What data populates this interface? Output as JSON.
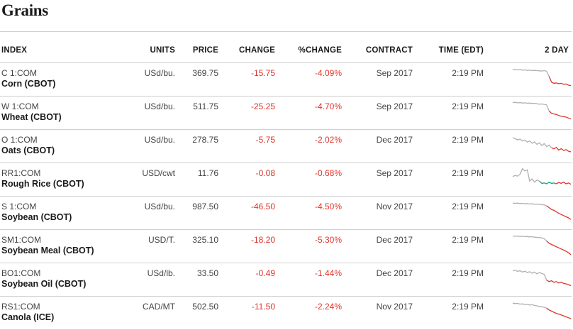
{
  "page": {
    "title": "Grains"
  },
  "columns": {
    "index": "INDEX",
    "units": "UNITS",
    "price": "PRICE",
    "change": "CHANGE",
    "pct_change": "%CHANGE",
    "contract": "CONTRACT",
    "time": "TIME (EDT)",
    "two_day": "2 DAY"
  },
  "colors": {
    "negative": "#e0352b",
    "positive": "#1aa37a",
    "neutral_line": "#b0b0b0"
  },
  "rows": [
    {
      "code": "C 1:COM",
      "name": "Corn (CBOT)",
      "units": "USd/bu.",
      "price": "369.75",
      "change": "-15.75",
      "pct": "-4.09%",
      "contract": "Sep 2017",
      "time": "2:19 PM",
      "trend": [
        0.9,
        0.91,
        0.89,
        0.9,
        0.88,
        0.89,
        0.87,
        0.88,
        0.86,
        0.87,
        0.86,
        0.85,
        0.84,
        0.86,
        0.83,
        0.6,
        0.35,
        0.3,
        0.32,
        0.28,
        0.3,
        0.26,
        0.27,
        0.22,
        0.2
      ],
      "split": 15
    },
    {
      "code": "W 1:COM",
      "name": "Wheat (CBOT)",
      "units": "USd/bu.",
      "price": "511.75",
      "change": "-25.25",
      "pct": "-4.70%",
      "contract": "Sep 2017",
      "time": "2:19 PM",
      "trend": [
        0.92,
        0.93,
        0.91,
        0.92,
        0.9,
        0.91,
        0.89,
        0.9,
        0.88,
        0.89,
        0.87,
        0.85,
        0.86,
        0.84,
        0.82,
        0.55,
        0.45,
        0.42,
        0.4,
        0.35,
        0.32,
        0.3,
        0.28,
        0.24,
        0.2
      ],
      "split": 15
    },
    {
      "code": "O 1:COM",
      "name": "Oats (CBOT)",
      "units": "USd/bu.",
      "price": "278.75",
      "change": "-5.75",
      "pct": "-2.02%",
      "contract": "Dec 2017",
      "time": "2:19 PM",
      "trend": [
        0.85,
        0.8,
        0.75,
        0.78,
        0.7,
        0.74,
        0.65,
        0.7,
        0.6,
        0.66,
        0.55,
        0.62,
        0.5,
        0.58,
        0.45,
        0.52,
        0.4,
        0.35,
        0.42,
        0.3,
        0.36,
        0.28,
        0.32,
        0.25,
        0.22
      ],
      "split": 16
    },
    {
      "code": "RR1:COM",
      "name": "Rough Rice (CBOT)",
      "units": "USD/cwt",
      "price": "11.76",
      "change": "-0.08",
      "pct": "-0.68%",
      "contract": "Sep 2017",
      "time": "2:19 PM",
      "trend": [
        0.6,
        0.65,
        0.62,
        0.7,
        0.95,
        0.85,
        0.9,
        0.4,
        0.5,
        0.35,
        0.45,
        0.4,
        0.3,
        0.32,
        0.28,
        0.35,
        0.3,
        0.32,
        0.28,
        0.34,
        0.3,
        0.36,
        0.28,
        0.32,
        0.26
      ],
      "split": 11,
      "pos_range": [
        11,
        18
      ]
    },
    {
      "code": "S 1:COM",
      "name": "Soybean (CBOT)",
      "units": "USd/bu.",
      "price": "987.50",
      "change": "-46.50",
      "pct": "-4.50%",
      "contract": "Nov 2017",
      "time": "2:19 PM",
      "trend": [
        0.9,
        0.89,
        0.9,
        0.88,
        0.89,
        0.87,
        0.88,
        0.86,
        0.87,
        0.85,
        0.86,
        0.84,
        0.83,
        0.82,
        0.78,
        0.7,
        0.62,
        0.58,
        0.52,
        0.45,
        0.4,
        0.35,
        0.3,
        0.25,
        0.18
      ],
      "split": 14
    },
    {
      "code": "SM1:COM",
      "name": "Soybean Meal (CBOT)",
      "units": "USD/T.",
      "price": "325.10",
      "change": "-18.20",
      "pct": "-5.30%",
      "contract": "Dec 2017",
      "time": "2:19 PM",
      "trend": [
        0.92,
        0.91,
        0.92,
        0.9,
        0.91,
        0.89,
        0.9,
        0.88,
        0.89,
        0.87,
        0.86,
        0.85,
        0.84,
        0.8,
        0.7,
        0.6,
        0.55,
        0.5,
        0.45,
        0.4,
        0.35,
        0.3,
        0.25,
        0.18,
        0.1
      ],
      "split": 14
    },
    {
      "code": "BO1:COM",
      "name": "Soybean Oil (CBOT)",
      "units": "USd/lb.",
      "price": "33.50",
      "change": "-0.49",
      "pct": "-1.44%",
      "contract": "Dec 2017",
      "time": "2:19 PM",
      "trend": [
        0.85,
        0.88,
        0.83,
        0.86,
        0.8,
        0.84,
        0.78,
        0.82,
        0.75,
        0.8,
        0.72,
        0.78,
        0.74,
        0.7,
        0.45,
        0.38,
        0.42,
        0.35,
        0.38,
        0.32,
        0.36,
        0.3,
        0.28,
        0.25,
        0.2
      ],
      "split": 14
    },
    {
      "code": "RS1:COM",
      "name": "Canola (ICE)",
      "units": "CAD/MT",
      "price": "502.50",
      "change": "-11.50",
      "pct": "-2.24%",
      "contract": "Nov 2017",
      "time": "2:19 PM",
      "trend": [
        0.9,
        0.88,
        0.89,
        0.86,
        0.87,
        0.84,
        0.85,
        0.82,
        0.83,
        0.8,
        0.78,
        0.76,
        0.74,
        0.72,
        0.68,
        0.6,
        0.55,
        0.5,
        0.45,
        0.42,
        0.38,
        0.34,
        0.3,
        0.26,
        0.22
      ],
      "split": 14
    }
  ]
}
